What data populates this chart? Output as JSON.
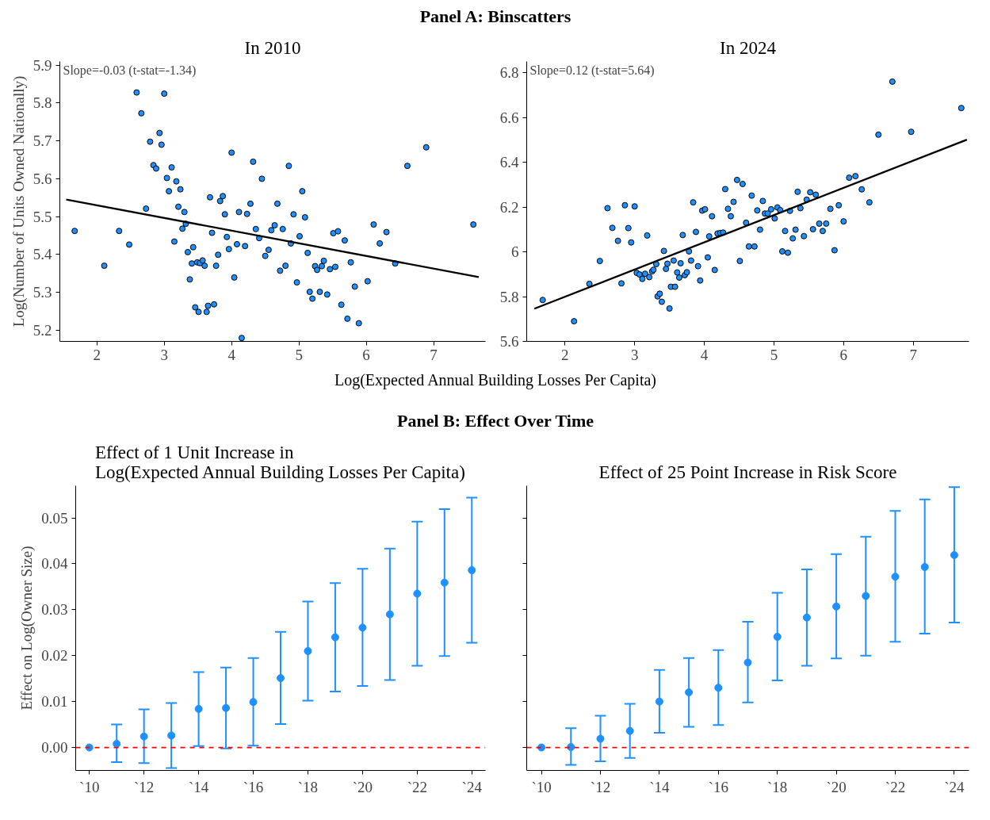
{
  "chart_data": [
    {
      "type": "scatter",
      "title": "In 2010",
      "xlabel": "Log(Expected Annual Building Losses Per Capita)",
      "ylabel": "Log(Number of Units Owned Nationally)",
      "annotations": [
        "Panel A: Binscatters",
        "Slope=-0.03 (t-stat=-1.34)"
      ],
      "xlim": [
        1.45,
        7.77
      ],
      "ylim": [
        5.17,
        5.91
      ],
      "xticks": [
        2,
        3,
        4,
        5,
        6,
        7
      ],
      "yticks": [
        5.2,
        5.3,
        5.4,
        5.5,
        5.6,
        5.7,
        5.8,
        5.9
      ],
      "series": [
        {
          "type": "scatter",
          "marker": "circle",
          "color": "#1e90ff",
          "x": [
            1.67,
            2.11,
            2.33,
            2.48,
            2.59,
            2.66,
            2.73,
            2.79,
            2.84,
            2.88,
            2.93,
            2.96,
            3.0,
            3.04,
            3.07,
            3.11,
            3.15,
            3.18,
            3.21,
            3.24,
            3.27,
            3.3,
            3.32,
            3.35,
            3.38,
            3.41,
            3.43,
            3.46,
            3.49,
            3.51,
            3.53,
            3.57,
            3.6,
            3.63,
            3.65,
            3.68,
            3.71,
            3.74,
            3.77,
            3.8,
            3.83,
            3.87,
            3.9,
            3.93,
            3.96,
            4.0,
            4.04,
            4.08,
            4.11,
            4.15,
            4.2,
            4.23,
            4.28,
            4.32,
            4.36,
            4.41,
            4.45,
            4.5,
            4.55,
            4.59,
            4.64,
            4.68,
            4.72,
            4.76,
            4.8,
            4.85,
            4.88,
            4.92,
            4.97,
            5.01,
            5.05,
            5.09,
            5.13,
            5.16,
            5.2,
            5.24,
            5.27,
            5.31,
            5.34,
            5.37,
            5.42,
            5.46,
            5.51,
            5.54,
            5.58,
            5.63,
            5.68,
            5.72,
            5.77,
            5.83,
            5.89,
            6.02,
            6.11,
            6.2,
            6.3,
            6.43,
            6.61,
            6.89,
            7.59
          ],
          "values": [
            5.462,
            5.37,
            5.462,
            5.426,
            5.828,
            5.773,
            5.521,
            5.698,
            5.636,
            5.627,
            5.721,
            5.69,
            5.825,
            5.602,
            5.567,
            5.63,
            5.434,
            5.593,
            5.526,
            5.572,
            5.468,
            5.512,
            5.481,
            5.406,
            5.334,
            5.376,
            5.419,
            5.26,
            5.379,
            5.248,
            5.377,
            5.384,
            5.37,
            5.248,
            5.264,
            5.551,
            5.457,
            5.268,
            5.37,
            5.399,
            5.541,
            5.554,
            5.506,
            5.446,
            5.414,
            5.669,
            5.339,
            5.427,
            5.512,
            5.179,
            5.422,
            5.507,
            5.534,
            5.645,
            5.467,
            5.443,
            5.6,
            5.396,
            5.412,
            5.464,
            5.477,
            5.534,
            5.357,
            5.467,
            5.37,
            5.634,
            5.429,
            5.506,
            5.326,
            5.448,
            5.567,
            5.498,
            5.404,
            5.301,
            5.283,
            5.369,
            5.359,
            5.301,
            5.369,
            5.383,
            5.294,
            5.361,
            5.456,
            5.367,
            5.461,
            5.267,
            5.437,
            5.23,
            5.379,
            5.315,
            5.218,
            5.329,
            5.479,
            5.429,
            5.459,
            5.376,
            5.634,
            5.683,
            5.479
          ]
        },
        {
          "type": "line",
          "color": "#000000",
          "x": [
            1.545,
            7.67
          ],
          "values": [
            5.545,
            5.34
          ]
        }
      ]
    },
    {
      "type": "scatter",
      "title": "In 2024",
      "annotations": [
        "Slope=0.12 (t-stat=5.64)"
      ],
      "xlim": [
        1.45,
        7.8
      ],
      "ylim": [
        5.6,
        6.85
      ],
      "xticks": [
        2,
        3,
        4,
        5,
        6,
        7
      ],
      "yticks": [
        5.6,
        5.8,
        6.0,
        6.2,
        6.4,
        6.6,
        6.8
      ],
      "series": [
        {
          "type": "scatter",
          "marker": "circle",
          "color": "#1e90ff",
          "x": [
            1.68,
            2.13,
            2.35,
            2.5,
            2.61,
            2.68,
            2.76,
            2.81,
            2.86,
            2.91,
            2.95,
            3.0,
            3.03,
            3.07,
            3.11,
            3.15,
            3.18,
            3.21,
            3.25,
            3.27,
            3.31,
            3.33,
            3.36,
            3.39,
            3.42,
            3.45,
            3.47,
            3.5,
            3.52,
            3.56,
            3.58,
            3.61,
            3.64,
            3.66,
            3.69,
            3.72,
            3.75,
            3.78,
            3.81,
            3.84,
            3.88,
            3.91,
            3.94,
            3.97,
            4.01,
            4.05,
            4.07,
            4.11,
            4.15,
            4.19,
            4.23,
            4.27,
            4.3,
            4.34,
            4.38,
            4.42,
            4.47,
            4.51,
            4.55,
            4.6,
            4.64,
            4.68,
            4.72,
            4.76,
            4.8,
            4.84,
            4.87,
            4.91,
            4.96,
            5.01,
            5.05,
            5.09,
            5.12,
            5.16,
            5.2,
            5.23,
            5.27,
            5.31,
            5.34,
            5.38,
            5.43,
            5.47,
            5.52,
            5.56,
            5.6,
            5.65,
            5.7,
            5.75,
            5.81,
            5.87,
            5.93,
            6.0,
            6.08,
            6.17,
            6.26,
            6.37,
            6.5,
            6.7,
            6.97,
            7.69
          ],
          "values": [
            5.785,
            5.69,
            5.857,
            5.959,
            6.195,
            6.107,
            6.049,
            5.859,
            6.208,
            6.106,
            6.042,
            6.203,
            5.906,
            5.899,
            5.879,
            5.902,
            6.073,
            5.887,
            5.913,
            5.92,
            5.945,
            5.801,
            5.813,
            5.777,
            6.004,
            5.924,
            5.947,
            5.747,
            5.844,
            5.961,
            5.844,
            5.908,
            5.885,
            5.949,
            6.075,
            5.896,
            5.909,
            6.002,
            5.961,
            6.221,
            6.089,
            5.936,
            5.872,
            6.184,
            6.19,
            5.975,
            6.069,
            6.159,
            5.919,
            6.082,
            6.084,
            6.086,
            6.28,
            6.192,
            6.159,
            6.223,
            6.321,
            5.959,
            6.303,
            6.13,
            6.024,
            6.251,
            6.024,
            6.185,
            6.099,
            6.227,
            6.171,
            6.171,
            6.19,
            6.149,
            6.198,
            6.186,
            6.002,
            6.093,
            5.996,
            6.183,
            6.06,
            6.099,
            6.268,
            6.195,
            6.07,
            6.233,
            6.266,
            6.101,
            6.255,
            6.126,
            6.093,
            6.126,
            6.192,
            6.007,
            6.208,
            6.136,
            6.331,
            6.338,
            6.279,
            6.221,
            6.523,
            6.76,
            6.536,
            6.642
          ]
        },
        {
          "type": "line",
          "color": "#000000",
          "x": [
            1.56,
            7.77
          ],
          "values": [
            5.746,
            6.501
          ]
        }
      ]
    },
    {
      "type": "scatter",
      "title": "Effect of 1 Unit Increase in\nLog(Expected Annual Building Losses Per Capita)",
      "ylabel": "Effect on Log(Owner Size)",
      "annotations": [
        "Panel B: Effect Over Time"
      ],
      "categories": [
        "`10",
        null,
        "`12",
        null,
        "`14",
        null,
        "`16",
        null,
        "`18",
        null,
        "`20",
        null,
        "`22",
        null,
        "`24"
      ],
      "ylim": [
        -0.005,
        0.057
      ],
      "yticks": [
        {
          "value": 0,
          "label": "0.00"
        },
        {
          "value": 0.01,
          "label": "0.01"
        },
        {
          "value": 0.02,
          "label": "0.02"
        },
        {
          "value": 0.03,
          "label": "0.03"
        },
        {
          "value": 0.04,
          "label": "0.04"
        },
        {
          "value": 0.05,
          "label": "0.05"
        }
      ],
      "ref_lines": [
        {
          "axis": "y",
          "value": 0,
          "color": "#ff0000",
          "line_style": "dashed"
        }
      ],
      "series": [
        {
          "color": "#1e90ff",
          "marker": "circle",
          "values": [
            0,
            0.0008,
            0.0024,
            0.0026,
            0.0084,
            0.0086,
            0.0099,
            0.0151,
            0.021,
            0.024,
            0.0261,
            0.029,
            0.0335,
            0.0359,
            0.0386
          ],
          "errors": [
            null,
            [
              -0.0032,
              0.005
            ],
            [
              -0.0034,
              0.0083
            ],
            [
              -0.0045,
              0.0097
            ],
            [
              0.0003,
              0.0164
            ],
            [
              -0.0002,
              0.0174
            ],
            [
              0.0004,
              0.0195
            ],
            [
              0.0051,
              0.0252
            ],
            [
              0.0102,
              0.0318
            ],
            [
              0.0122,
              0.0358
            ],
            [
              0.0134,
              0.0389
            ],
            [
              0.0147,
              0.0433
            ],
            [
              0.0178,
              0.0492
            ],
            [
              0.0199,
              0.0519
            ],
            [
              0.0228,
              0.0544
            ]
          ]
        }
      ]
    },
    {
      "type": "scatter",
      "title": "Effect of 25 Point Increase in Risk Score",
      "tick_labels": "x",
      "categories": [
        "`10",
        null,
        "`12",
        null,
        "`14",
        null,
        "`16",
        null,
        "`18",
        null,
        "`20",
        null,
        "`22",
        null,
        "`24"
      ],
      "ylim": [
        -0.005,
        0.057
      ],
      "yticks": [
        0,
        0.01,
        0.02,
        0.03,
        0.04,
        0.05
      ],
      "ref_lines": [
        {
          "axis": "y",
          "value": 0,
          "color": "#ff0000",
          "line_style": "dashed"
        }
      ],
      "series": [
        {
          "color": "#1e90ff",
          "marker": "circle",
          "values": [
            0,
            0.0001,
            0.0019,
            0.0036,
            0.01,
            0.012,
            0.013,
            0.0185,
            0.0241,
            0.0283,
            0.0307,
            0.033,
            0.0372,
            0.0393,
            0.0419
          ],
          "errors": [
            null,
            [
              -0.0038,
              0.0042
            ],
            [
              -0.003,
              0.0069
            ],
            [
              -0.0023,
              0.0095
            ],
            [
              0.0032,
              0.0169
            ],
            [
              0.0045,
              0.0195
            ],
            [
              0.0049,
              0.0212
            ],
            [
              0.0098,
              0.0274
            ],
            [
              0.0146,
              0.0337
            ],
            [
              0.0178,
              0.0388
            ],
            [
              0.0194,
              0.0421
            ],
            [
              0.02,
              0.0459
            ],
            [
              0.023,
              0.0515
            ],
            [
              0.0248,
              0.054
            ],
            [
              0.0272,
              0.0567
            ]
          ]
        }
      ]
    }
  ]
}
